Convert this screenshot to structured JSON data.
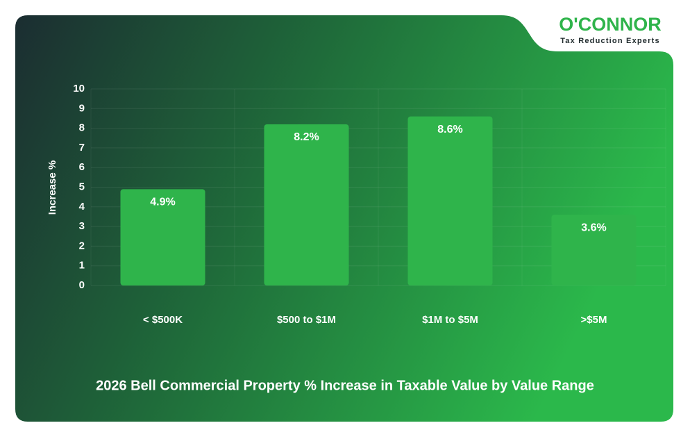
{
  "logo": {
    "name": "O'CONNOR",
    "tagline": "Tax Reduction Experts"
  },
  "chart_data": {
    "type": "bar",
    "title": "2026 Bell Commercial Property % Increase in Taxable Value by Value Range",
    "y_label": "Increase %",
    "categories": [
      "< $500K",
      "$500 to $1M",
      "$1M to $5M",
      ">$5M"
    ],
    "values": [
      4.9,
      8.2,
      8.6,
      3.6
    ],
    "value_labels": [
      "4.9%",
      "8.2%",
      "8.6%",
      "3.6%"
    ],
    "color": "#2fb44b",
    "ylim": [
      0,
      10
    ],
    "yticks": [
      0,
      1,
      2,
      3,
      4,
      5,
      6,
      7,
      8,
      9,
      10
    ],
    "grid": true
  }
}
